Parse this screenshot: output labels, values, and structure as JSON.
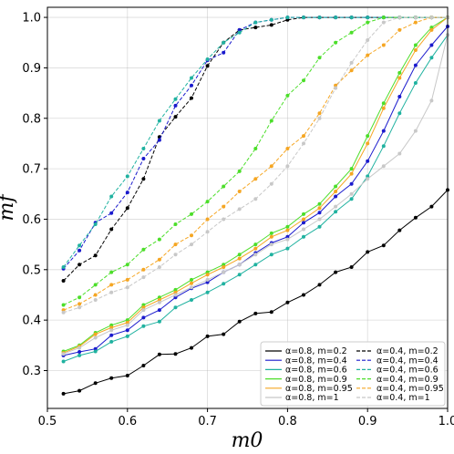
{
  "chart_data": {
    "type": "line",
    "xlabel": "m0",
    "ylabel": "mf",
    "xlim": [
      0.5,
      1.0
    ],
    "ylim": [
      0.225,
      1.02
    ],
    "xticks": [
      0.5,
      0.6,
      0.7,
      0.8,
      0.9,
      1.0
    ],
    "yticks": [
      0.3,
      0.4,
      0.5,
      0.6,
      0.7,
      0.8,
      0.9,
      1.0
    ],
    "xtick_labels": [
      "0.5",
      "0.6",
      "0.7",
      "0.8",
      "0.9",
      "1.0"
    ],
    "ytick_labels": [
      "0.3",
      "0.4",
      "0.5",
      "0.6",
      "0.7",
      "0.8",
      "0.9",
      "1.0"
    ],
    "grid": true,
    "legend_position": "lower-right",
    "x": [
      0.52,
      0.54,
      0.56,
      0.58,
      0.6,
      0.62,
      0.64,
      0.66,
      0.68,
      0.7,
      0.72,
      0.74,
      0.76,
      0.78,
      0.8,
      0.82,
      0.84,
      0.86,
      0.88,
      0.9,
      0.92,
      0.94,
      0.96,
      0.98,
      1.0
    ],
    "series": [
      {
        "name": "α=0.8, m=0.2",
        "color": "#000000",
        "style": "solid",
        "values": [
          0.254,
          0.26,
          0.275,
          0.285,
          0.29,
          0.31,
          0.332,
          0.333,
          0.345,
          0.368,
          0.372,
          0.397,
          0.413,
          0.416,
          0.435,
          0.45,
          0.47,
          0.495,
          0.505,
          0.535,
          0.548,
          0.578,
          0.603,
          0.625,
          0.658
        ]
      },
      {
        "name": "α=0.8, m=0.4",
        "color": "#1a1acd",
        "style": "solid",
        "values": [
          0.33,
          0.337,
          0.343,
          0.37,
          0.38,
          0.405,
          0.42,
          0.445,
          0.463,
          0.475,
          0.495,
          0.51,
          0.533,
          0.553,
          0.565,
          0.593,
          0.613,
          0.645,
          0.67,
          0.715,
          0.775,
          0.843,
          0.905,
          0.945,
          0.982
        ]
      },
      {
        "name": "α=0.8, m=0.6",
        "color": "#20b2a0",
        "style": "solid",
        "values": [
          0.318,
          0.33,
          0.338,
          0.357,
          0.368,
          0.388,
          0.397,
          0.425,
          0.44,
          0.455,
          0.472,
          0.49,
          0.51,
          0.53,
          0.542,
          0.565,
          0.585,
          0.615,
          0.64,
          0.685,
          0.745,
          0.81,
          0.87,
          0.92,
          0.965
        ]
      },
      {
        "name": "α=0.8, m=0.9",
        "color": "#4cde2a",
        "style": "solid",
        "values": [
          0.338,
          0.35,
          0.375,
          0.39,
          0.4,
          0.43,
          0.445,
          0.46,
          0.48,
          0.495,
          0.51,
          0.53,
          0.55,
          0.572,
          0.585,
          0.61,
          0.63,
          0.665,
          0.7,
          0.765,
          0.83,
          0.89,
          0.945,
          0.98,
          1.0
        ]
      },
      {
        "name": "α=0.8, m=0.95",
        "color": "#f5a623",
        "style": "solid",
        "values": [
          0.335,
          0.348,
          0.372,
          0.385,
          0.395,
          0.425,
          0.44,
          0.455,
          0.473,
          0.49,
          0.505,
          0.522,
          0.542,
          0.565,
          0.578,
          0.6,
          0.622,
          0.655,
          0.69,
          0.75,
          0.82,
          0.88,
          0.935,
          0.975,
          1.0
        ]
      },
      {
        "name": "α=0.8, m=1",
        "color": "#c8c8c8",
        "style": "solid",
        "values": [
          0.333,
          0.345,
          0.365,
          0.38,
          0.39,
          0.42,
          0.435,
          0.45,
          0.465,
          0.48,
          0.495,
          0.51,
          0.53,
          0.55,
          0.56,
          0.58,
          0.6,
          0.625,
          0.65,
          0.68,
          0.705,
          0.73,
          0.775,
          0.835,
          0.965
        ]
      },
      {
        "name": "α=0.4, m=0.2",
        "color": "#000000",
        "style": "dashed",
        "values": [
          0.478,
          0.51,
          0.528,
          0.58,
          0.622,
          0.68,
          0.763,
          0.803,
          0.84,
          0.904,
          0.95,
          0.975,
          0.98,
          0.985,
          0.995,
          1.0,
          1.0,
          1.0,
          1.0,
          1.0,
          1.0,
          1.0,
          1.0,
          1.0,
          1.0
        ]
      },
      {
        "name": "α=0.4, m=0.4",
        "color": "#1a1acd",
        "style": "dashed",
        "values": [
          0.502,
          0.538,
          0.593,
          0.612,
          0.653,
          0.72,
          0.757,
          0.825,
          0.865,
          0.915,
          0.93,
          0.975,
          0.99,
          0.995,
          1.0,
          1.0,
          1.0,
          1.0,
          1.0,
          1.0,
          1.0,
          1.0,
          1.0,
          1.0,
          1.0
        ]
      },
      {
        "name": "α=0.4, m=0.6",
        "color": "#20b2a0",
        "style": "dashed",
        "values": [
          0.505,
          0.548,
          0.59,
          0.645,
          0.685,
          0.74,
          0.795,
          0.838,
          0.88,
          0.917,
          0.95,
          0.97,
          0.99,
          0.995,
          1.0,
          1.0,
          1.0,
          1.0,
          1.0,
          1.0,
          1.0,
          1.0,
          1.0,
          1.0,
          1.0
        ]
      },
      {
        "name": "α=0.4, m=0.9",
        "color": "#4cde2a",
        "style": "dashed",
        "values": [
          0.43,
          0.445,
          0.47,
          0.495,
          0.51,
          0.54,
          0.56,
          0.59,
          0.61,
          0.635,
          0.665,
          0.695,
          0.74,
          0.795,
          0.845,
          0.875,
          0.92,
          0.95,
          0.97,
          0.99,
          1.0,
          1.0,
          1.0,
          1.0,
          1.0
        ]
      },
      {
        "name": "α=0.4, m=0.95",
        "color": "#f5a623",
        "style": "dashed",
        "values": [
          0.42,
          0.432,
          0.45,
          0.47,
          0.48,
          0.5,
          0.52,
          0.55,
          0.568,
          0.6,
          0.625,
          0.655,
          0.68,
          0.705,
          0.74,
          0.765,
          0.81,
          0.865,
          0.895,
          0.925,
          0.945,
          0.975,
          0.99,
          1.0,
          1.0
        ]
      },
      {
        "name": "α=0.4, m=1",
        "color": "#c8c8c8",
        "style": "dashed",
        "values": [
          0.415,
          0.425,
          0.44,
          0.455,
          0.465,
          0.485,
          0.505,
          0.53,
          0.55,
          0.575,
          0.6,
          0.62,
          0.64,
          0.67,
          0.705,
          0.75,
          0.8,
          0.86,
          0.91,
          0.955,
          0.99,
          1.0,
          1.0,
          1.0,
          1.0
        ]
      }
    ]
  }
}
